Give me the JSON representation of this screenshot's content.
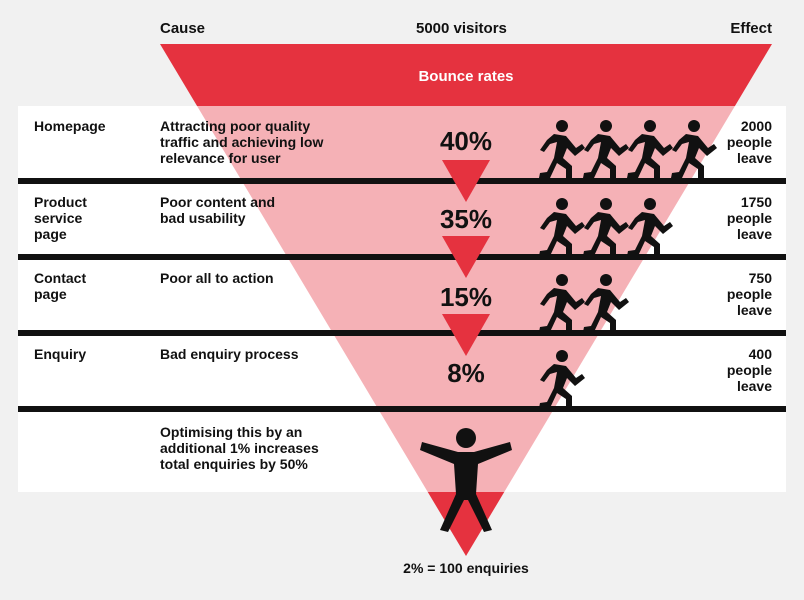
{
  "header": {
    "cause_label": "Cause",
    "visitors_label": "5000 visitors",
    "effect_label": "Effect"
  },
  "funnel_label": "Bounce rates",
  "colors": {
    "funnel_red": "#e5323f",
    "row_band": "#ffffff",
    "divider": "#111111",
    "background": "#f1f1f1"
  },
  "stages": [
    {
      "name": "Homepage",
      "cause": "Attracting poor quality\ntraffic and achieving low\nrelevance for user",
      "percent": "40%",
      "effect": "2000\npeople\nleave",
      "runners": 4
    },
    {
      "name": "Product\nservice\npage",
      "cause": "Poor content and\nbad usability",
      "percent": "35%",
      "effect": "1750\npeople\nleave",
      "runners": 3
    },
    {
      "name": "Contact\npage",
      "cause": "Poor all to action",
      "percent": "15%",
      "effect": "750\npeople\nleave",
      "runners": 2
    },
    {
      "name": "Enquiry",
      "cause": "Bad enquiry process",
      "percent": "8%",
      "effect": "400\npeople\nleave",
      "runners": 1
    }
  ],
  "final_note": "Optimising this by an\nadditional 1% increases\ntotal enquiries by 50%",
  "footer": "2% = 100 enquiries",
  "icons": {
    "runner": "running-person-icon",
    "celebrate": "celebrating-person-icon"
  }
}
